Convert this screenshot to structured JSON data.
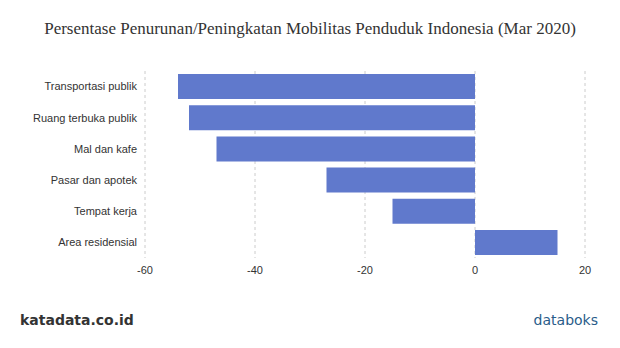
{
  "chart_data": {
    "type": "bar",
    "title": "Persentase Penurunan/Peningkatan Mobilitas Penduduk Indonesia (Mar 2020)",
    "orientation": "horizontal",
    "categories": [
      "Transportasi publik",
      "Ruang terbuka publik",
      "Mal dan kafe",
      "Pasar dan apotek",
      "Tempat kerja",
      "Area residensial"
    ],
    "values": [
      -54,
      -52,
      -47,
      -27,
      -15,
      15
    ],
    "color": "#6079cc",
    "xlim": [
      -60,
      20
    ],
    "xticks": [
      -60,
      -40,
      -20,
      0,
      20
    ],
    "grid": true,
    "annotations": [
      "katadata.co.id",
      "databoks"
    ]
  }
}
